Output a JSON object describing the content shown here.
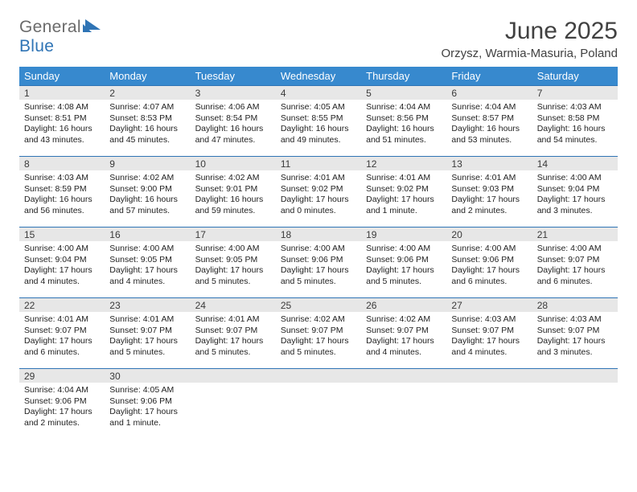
{
  "logo": {
    "general": "General",
    "blue": "Blue"
  },
  "header": {
    "month_title": "June 2025",
    "subtitle": "Orzysz, Warmia-Masuria, Poland"
  },
  "colors": {
    "header_bg": "#3789ce",
    "border": "#2f74b5",
    "daynum_bg": "#e7e7e7",
    "title_color": "#414141",
    "logo_gray": "#6b6b6b",
    "logo_blue": "#2f74b5"
  },
  "calendar": {
    "weekdays": [
      "Sunday",
      "Monday",
      "Tuesday",
      "Wednesday",
      "Thursday",
      "Friday",
      "Saturday"
    ],
    "weeks": [
      [
        {
          "day": "1",
          "sunrise": "Sunrise: 4:08 AM",
          "sunset": "Sunset: 8:51 PM",
          "dl1": "Daylight: 16 hours",
          "dl2": "and 43 minutes."
        },
        {
          "day": "2",
          "sunrise": "Sunrise: 4:07 AM",
          "sunset": "Sunset: 8:53 PM",
          "dl1": "Daylight: 16 hours",
          "dl2": "and 45 minutes."
        },
        {
          "day": "3",
          "sunrise": "Sunrise: 4:06 AM",
          "sunset": "Sunset: 8:54 PM",
          "dl1": "Daylight: 16 hours",
          "dl2": "and 47 minutes."
        },
        {
          "day": "4",
          "sunrise": "Sunrise: 4:05 AM",
          "sunset": "Sunset: 8:55 PM",
          "dl1": "Daylight: 16 hours",
          "dl2": "and 49 minutes."
        },
        {
          "day": "5",
          "sunrise": "Sunrise: 4:04 AM",
          "sunset": "Sunset: 8:56 PM",
          "dl1": "Daylight: 16 hours",
          "dl2": "and 51 minutes."
        },
        {
          "day": "6",
          "sunrise": "Sunrise: 4:04 AM",
          "sunset": "Sunset: 8:57 PM",
          "dl1": "Daylight: 16 hours",
          "dl2": "and 53 minutes."
        },
        {
          "day": "7",
          "sunrise": "Sunrise: 4:03 AM",
          "sunset": "Sunset: 8:58 PM",
          "dl1": "Daylight: 16 hours",
          "dl2": "and 54 minutes."
        }
      ],
      [
        {
          "day": "8",
          "sunrise": "Sunrise: 4:03 AM",
          "sunset": "Sunset: 8:59 PM",
          "dl1": "Daylight: 16 hours",
          "dl2": "and 56 minutes."
        },
        {
          "day": "9",
          "sunrise": "Sunrise: 4:02 AM",
          "sunset": "Sunset: 9:00 PM",
          "dl1": "Daylight: 16 hours",
          "dl2": "and 57 minutes."
        },
        {
          "day": "10",
          "sunrise": "Sunrise: 4:02 AM",
          "sunset": "Sunset: 9:01 PM",
          "dl1": "Daylight: 16 hours",
          "dl2": "and 59 minutes."
        },
        {
          "day": "11",
          "sunrise": "Sunrise: 4:01 AM",
          "sunset": "Sunset: 9:02 PM",
          "dl1": "Daylight: 17 hours",
          "dl2": "and 0 minutes."
        },
        {
          "day": "12",
          "sunrise": "Sunrise: 4:01 AM",
          "sunset": "Sunset: 9:02 PM",
          "dl1": "Daylight: 17 hours",
          "dl2": "and 1 minute."
        },
        {
          "day": "13",
          "sunrise": "Sunrise: 4:01 AM",
          "sunset": "Sunset: 9:03 PM",
          "dl1": "Daylight: 17 hours",
          "dl2": "and 2 minutes."
        },
        {
          "day": "14",
          "sunrise": "Sunrise: 4:00 AM",
          "sunset": "Sunset: 9:04 PM",
          "dl1": "Daylight: 17 hours",
          "dl2": "and 3 minutes."
        }
      ],
      [
        {
          "day": "15",
          "sunrise": "Sunrise: 4:00 AM",
          "sunset": "Sunset: 9:04 PM",
          "dl1": "Daylight: 17 hours",
          "dl2": "and 4 minutes."
        },
        {
          "day": "16",
          "sunrise": "Sunrise: 4:00 AM",
          "sunset": "Sunset: 9:05 PM",
          "dl1": "Daylight: 17 hours",
          "dl2": "and 4 minutes."
        },
        {
          "day": "17",
          "sunrise": "Sunrise: 4:00 AM",
          "sunset": "Sunset: 9:05 PM",
          "dl1": "Daylight: 17 hours",
          "dl2": "and 5 minutes."
        },
        {
          "day": "18",
          "sunrise": "Sunrise: 4:00 AM",
          "sunset": "Sunset: 9:06 PM",
          "dl1": "Daylight: 17 hours",
          "dl2": "and 5 minutes."
        },
        {
          "day": "19",
          "sunrise": "Sunrise: 4:00 AM",
          "sunset": "Sunset: 9:06 PM",
          "dl1": "Daylight: 17 hours",
          "dl2": "and 5 minutes."
        },
        {
          "day": "20",
          "sunrise": "Sunrise: 4:00 AM",
          "sunset": "Sunset: 9:06 PM",
          "dl1": "Daylight: 17 hours",
          "dl2": "and 6 minutes."
        },
        {
          "day": "21",
          "sunrise": "Sunrise: 4:00 AM",
          "sunset": "Sunset: 9:07 PM",
          "dl1": "Daylight: 17 hours",
          "dl2": "and 6 minutes."
        }
      ],
      [
        {
          "day": "22",
          "sunrise": "Sunrise: 4:01 AM",
          "sunset": "Sunset: 9:07 PM",
          "dl1": "Daylight: 17 hours",
          "dl2": "and 6 minutes."
        },
        {
          "day": "23",
          "sunrise": "Sunrise: 4:01 AM",
          "sunset": "Sunset: 9:07 PM",
          "dl1": "Daylight: 17 hours",
          "dl2": "and 5 minutes."
        },
        {
          "day": "24",
          "sunrise": "Sunrise: 4:01 AM",
          "sunset": "Sunset: 9:07 PM",
          "dl1": "Daylight: 17 hours",
          "dl2": "and 5 minutes."
        },
        {
          "day": "25",
          "sunrise": "Sunrise: 4:02 AM",
          "sunset": "Sunset: 9:07 PM",
          "dl1": "Daylight: 17 hours",
          "dl2": "and 5 minutes."
        },
        {
          "day": "26",
          "sunrise": "Sunrise: 4:02 AM",
          "sunset": "Sunset: 9:07 PM",
          "dl1": "Daylight: 17 hours",
          "dl2": "and 4 minutes."
        },
        {
          "day": "27",
          "sunrise": "Sunrise: 4:03 AM",
          "sunset": "Sunset: 9:07 PM",
          "dl1": "Daylight: 17 hours",
          "dl2": "and 4 minutes."
        },
        {
          "day": "28",
          "sunrise": "Sunrise: 4:03 AM",
          "sunset": "Sunset: 9:07 PM",
          "dl1": "Daylight: 17 hours",
          "dl2": "and 3 minutes."
        }
      ],
      [
        {
          "day": "29",
          "sunrise": "Sunrise: 4:04 AM",
          "sunset": "Sunset: 9:06 PM",
          "dl1": "Daylight: 17 hours",
          "dl2": "and 2 minutes."
        },
        {
          "day": "30",
          "sunrise": "Sunrise: 4:05 AM",
          "sunset": "Sunset: 9:06 PM",
          "dl1": "Daylight: 17 hours",
          "dl2": "and 1 minute."
        },
        {
          "day": "",
          "sunrise": "",
          "sunset": "",
          "dl1": "",
          "dl2": ""
        },
        {
          "day": "",
          "sunrise": "",
          "sunset": "",
          "dl1": "",
          "dl2": ""
        },
        {
          "day": "",
          "sunrise": "",
          "sunset": "",
          "dl1": "",
          "dl2": ""
        },
        {
          "day": "",
          "sunrise": "",
          "sunset": "",
          "dl1": "",
          "dl2": ""
        },
        {
          "day": "",
          "sunrise": "",
          "sunset": "",
          "dl1": "",
          "dl2": ""
        }
      ]
    ]
  }
}
